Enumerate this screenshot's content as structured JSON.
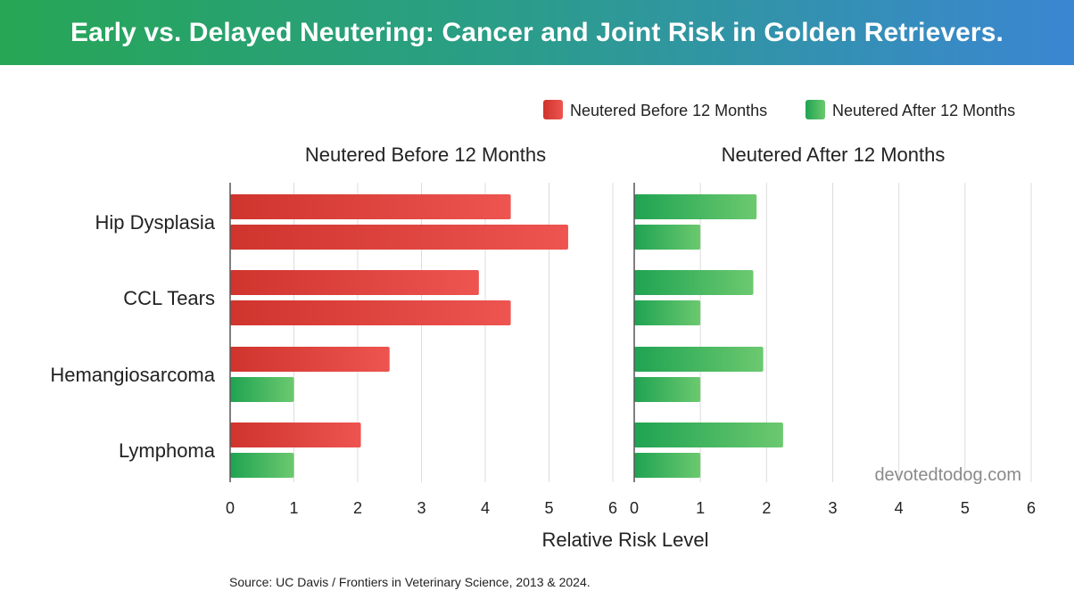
{
  "title": "Early vs. Delayed Neutering: Cancer and Joint Risk in Golden Retrievers.",
  "source": "Source: UC Davis / Frontiers in Veterinary Science, 2013 & 2024.",
  "watermark": "devotedtodog.com",
  "colors": {
    "red": "#e2463f",
    "green": "#2fb35c",
    "header_start": "#27a655",
    "header_end": "#3b86d2"
  },
  "chart_data": {
    "type": "bar",
    "orientation": "horizontal",
    "categories": [
      "Hip Dysplasia",
      "CCL Tears",
      "Hemangiosarcoma",
      "Lymphoma"
    ],
    "xlabel": "Relative Risk Level",
    "legend": {
      "placement": "top-right",
      "entries": [
        {
          "label": "Neutered Before 12 Months",
          "color": "red"
        },
        {
          "label": "Neutered After 12 Months",
          "color": "green"
        }
      ]
    },
    "panels": [
      {
        "title": "Neutered Before 12 Months",
        "xlim": [
          0,
          6
        ],
        "ticks": [
          "0",
          "1",
          "2",
          "3",
          "4",
          "5",
          "6"
        ],
        "grid": true,
        "bars": [
          [
            {
              "value": 4.4,
              "color": "red"
            },
            {
              "value": 5.3,
              "color": "red"
            }
          ],
          [
            {
              "value": 3.9,
              "color": "red"
            },
            {
              "value": 4.4,
              "color": "red"
            }
          ],
          [
            {
              "value": 2.5,
              "color": "red"
            },
            {
              "value": 1.0,
              "color": "green"
            }
          ],
          [
            {
              "value": 2.05,
              "color": "red"
            },
            {
              "value": 1.0,
              "color": "green"
            }
          ]
        ]
      },
      {
        "title": "Neutered After 12 Months",
        "xlim": [
          0,
          6
        ],
        "ticks": [
          "0",
          "1",
          "2",
          "3",
          "4",
          "5",
          "6"
        ],
        "grid": true,
        "bars": [
          [
            {
              "value": 1.85,
              "color": "green"
            },
            {
              "value": 1.0,
              "color": "green"
            }
          ],
          [
            {
              "value": 1.8,
              "color": "green"
            },
            {
              "value": 1.0,
              "color": "green"
            }
          ],
          [
            {
              "value": 1.95,
              "color": "green"
            },
            {
              "value": 1.0,
              "color": "green"
            }
          ],
          [
            {
              "value": 2.25,
              "color": "green"
            },
            {
              "value": 1.0,
              "color": "green"
            }
          ]
        ]
      }
    ]
  }
}
